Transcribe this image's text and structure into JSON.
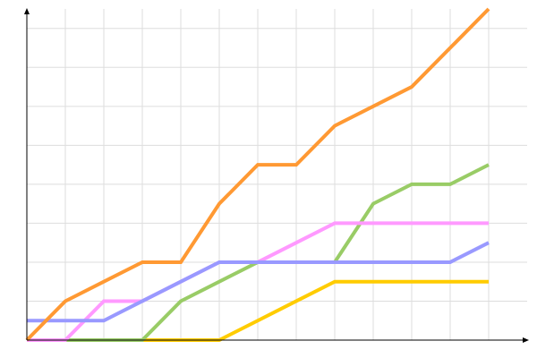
{
  "chart_data": {
    "type": "line",
    "title": "",
    "xlabel": "",
    "ylabel": "",
    "x": [
      0,
      1,
      2,
      3,
      4,
      5,
      6,
      7,
      8,
      9,
      10,
      11,
      12
    ],
    "xlim": [
      0,
      13
    ],
    "ylim": [
      0,
      8.5
    ],
    "grid": true,
    "legend": "none",
    "series": [
      {
        "color": "#ffcc00",
        "values": [
          0,
          0,
          0,
          0,
          0,
          0,
          0.5,
          1,
          1.5,
          1.5,
          1.5,
          1.5,
          1.5
        ]
      },
      {
        "color": "#99cc66",
        "values": [
          0,
          0,
          0,
          0,
          1,
          1.5,
          2,
          2,
          2,
          3.5,
          4,
          4,
          4.5
        ]
      },
      {
        "color": "#ff99ff",
        "values": [
          0,
          0,
          1,
          1,
          1.5,
          2,
          2,
          2.5,
          3,
          3,
          3,
          3,
          3
        ]
      },
      {
        "color": "#9999ff",
        "values": [
          0.5,
          0.5,
          0.5,
          1,
          1.5,
          2,
          2,
          2,
          2,
          2,
          2,
          2,
          2.5
        ]
      },
      {
        "color": "#ff9933",
        "values": [
          0,
          1,
          1.5,
          2,
          2,
          3.5,
          4.5,
          4.5,
          5.5,
          6,
          6.5,
          7.5,
          8.5
        ]
      }
    ]
  }
}
